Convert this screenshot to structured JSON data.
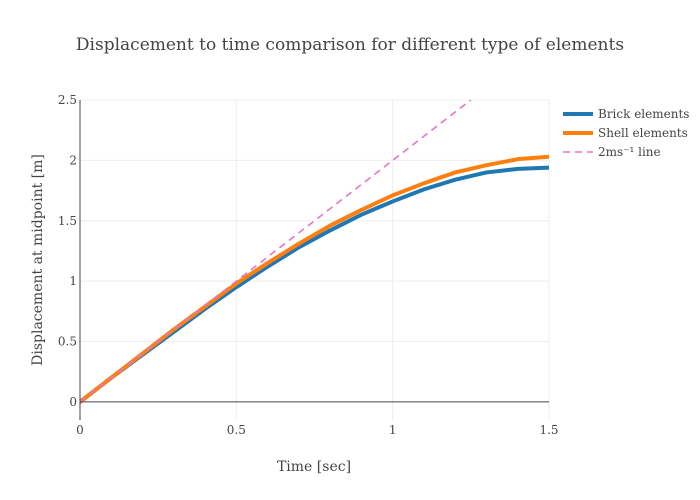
{
  "chart_data": {
    "type": "line",
    "title": "Displacement to time comparison for different type of elements",
    "xlabel": "Time [sec]",
    "ylabel": "Displacement at midpoint [m]",
    "xlim": [
      0,
      1.5
    ],
    "ylim": [
      -0.15,
      2.5
    ],
    "xticks": [
      0,
      0.5,
      1,
      1.5
    ],
    "xtick_labels": [
      "0",
      "0.5",
      "1",
      "1.5"
    ],
    "yticks": [
      0,
      0.5,
      1,
      1.5,
      2,
      2.5
    ],
    "ytick_labels": [
      "0",
      "0.5",
      "1",
      "1.5",
      "2",
      "2.5"
    ],
    "grid": true,
    "legend_position": "top-right",
    "series": [
      {
        "name": "Brick elements",
        "color": "#1f77b4",
        "dash": "solid",
        "x": [
          0,
          0.1,
          0.2,
          0.3,
          0.4,
          0.5,
          0.6,
          0.7,
          0.8,
          0.9,
          1.0,
          1.1,
          1.2,
          1.3,
          1.4,
          1.5
        ],
        "y": [
          0,
          0.2,
          0.39,
          0.58,
          0.77,
          0.95,
          1.12,
          1.28,
          1.42,
          1.55,
          1.66,
          1.76,
          1.84,
          1.9,
          1.93,
          1.94
        ]
      },
      {
        "name": "Shell elements",
        "color": "#ff7f0e",
        "dash": "solid",
        "x": [
          0,
          0.1,
          0.2,
          0.3,
          0.4,
          0.5,
          0.6,
          0.7,
          0.8,
          0.9,
          1.0,
          1.1,
          1.2,
          1.3,
          1.4,
          1.5
        ],
        "y": [
          0,
          0.2,
          0.4,
          0.6,
          0.79,
          0.98,
          1.15,
          1.31,
          1.46,
          1.59,
          1.71,
          1.81,
          1.9,
          1.96,
          2.01,
          2.03
        ]
      },
      {
        "name": "2ms⁻¹ line",
        "color": "#e377c2",
        "dash": "dash",
        "x": [
          0,
          1.25
        ],
        "y": [
          0,
          2.5
        ]
      }
    ]
  }
}
